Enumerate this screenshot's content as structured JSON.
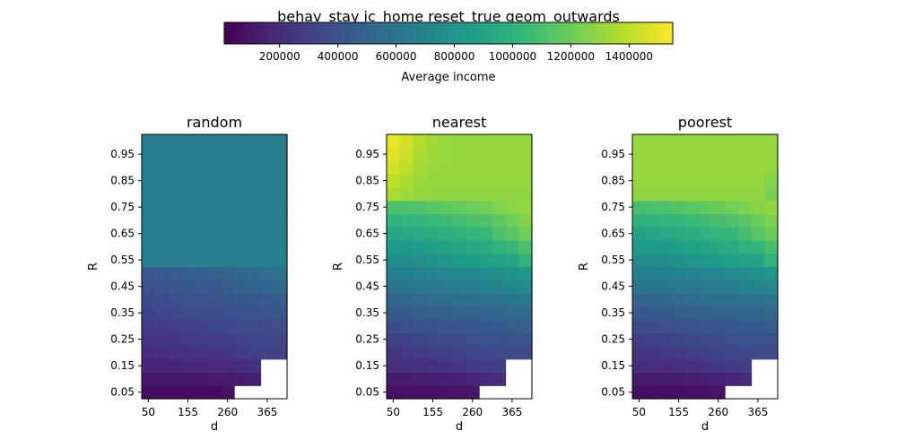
{
  "figure_title": "behav_stay ic_home reset_true geom_outwards",
  "colorbar": {
    "label": "Average income",
    "ticks": [
      200000,
      400000,
      600000,
      800000,
      1000000,
      1200000,
      1400000
    ],
    "range": [
      10000,
      1550000
    ],
    "colormap": "viridis"
  },
  "chart_data": [
    {
      "type": "heatmap",
      "title": "random",
      "xlabel": "d",
      "ylabel": "R",
      "x_ticks": [
        "50",
        "155",
        "260",
        "365"
      ],
      "y_ticks": [
        "0.05",
        "0.15",
        "0.25",
        "0.35",
        "0.45",
        "0.55",
        "0.65",
        "0.75",
        "0.85",
        "0.95"
      ],
      "x_range": [
        50,
        400
      ],
      "y_range": [
        0.05,
        1.0
      ],
      "x_values": [
        50,
        85,
        120,
        155,
        190,
        225,
        260,
        295,
        330,
        365,
        400
      ],
      "y_values": [
        0.05,
        0.1,
        0.15,
        0.2,
        0.25,
        0.3,
        0.35,
        0.4,
        0.45,
        0.5,
        0.55,
        0.6,
        0.65,
        0.7,
        0.75,
        0.8,
        0.85,
        0.9,
        0.95,
        1.0
      ],
      "z": [
        [
          60000,
          60000,
          60000,
          60000,
          60000,
          60000,
          80000,
          null,
          null,
          null,
          null
        ],
        [
          110000,
          110000,
          110000,
          110000,
          110000,
          120000,
          120000,
          130000,
          150000,
          null,
          null
        ],
        [
          170000,
          170000,
          170000,
          180000,
          180000,
          190000,
          190000,
          200000,
          230000,
          null,
          null
        ],
        [
          200000,
          210000,
          220000,
          230000,
          240000,
          250000,
          260000,
          280000,
          300000,
          310000,
          310000
        ],
        [
          240000,
          250000,
          260000,
          270000,
          280000,
          290000,
          300000,
          310000,
          330000,
          340000,
          340000
        ],
        [
          280000,
          290000,
          300000,
          310000,
          320000,
          330000,
          340000,
          350000,
          360000,
          370000,
          380000
        ],
        [
          320000,
          330000,
          340000,
          350000,
          360000,
          370000,
          380000,
          390000,
          400000,
          410000,
          420000
        ],
        [
          360000,
          370000,
          380000,
          390000,
          400000,
          410000,
          420000,
          430000,
          440000,
          450000,
          460000
        ],
        [
          400000,
          410000,
          420000,
          430000,
          440000,
          450000,
          460000,
          480000,
          500000,
          520000,
          540000
        ],
        [
          440000,
          450000,
          460000,
          470000,
          480000,
          490000,
          500000,
          520000,
          540000,
          560000,
          600000
        ],
        [
          660000,
          660000,
          660000,
          660000,
          660000,
          660000,
          660000,
          660000,
          660000,
          660000,
          680000
        ],
        [
          660000,
          660000,
          660000,
          660000,
          660000,
          660000,
          660000,
          660000,
          660000,
          660000,
          680000
        ],
        [
          660000,
          660000,
          660000,
          660000,
          660000,
          660000,
          660000,
          660000,
          660000,
          660000,
          670000
        ],
        [
          660000,
          660000,
          660000,
          660000,
          660000,
          660000,
          660000,
          660000,
          660000,
          660000,
          670000
        ],
        [
          660000,
          660000,
          660000,
          660000,
          660000,
          660000,
          660000,
          660000,
          660000,
          660000,
          670000
        ],
        [
          660000,
          660000,
          660000,
          660000,
          660000,
          660000,
          660000,
          660000,
          660000,
          660000,
          660000
        ],
        [
          660000,
          660000,
          660000,
          660000,
          660000,
          660000,
          660000,
          660000,
          660000,
          660000,
          660000
        ],
        [
          660000,
          660000,
          660000,
          660000,
          660000,
          660000,
          660000,
          660000,
          660000,
          660000,
          660000
        ],
        [
          660000,
          660000,
          660000,
          660000,
          660000,
          660000,
          660000,
          660000,
          660000,
          660000,
          660000
        ],
        [
          660000,
          660000,
          660000,
          660000,
          660000,
          660000,
          660000,
          660000,
          660000,
          660000,
          660000
        ]
      ]
    },
    {
      "type": "heatmap",
      "title": "nearest",
      "xlabel": "d",
      "ylabel": "R",
      "x_ticks": [
        "50",
        "155",
        "260",
        "365"
      ],
      "y_ticks": [
        "0.05",
        "0.15",
        "0.25",
        "0.35",
        "0.45",
        "0.55",
        "0.65",
        "0.75",
        "0.85",
        "0.95"
      ],
      "x_range": [
        50,
        400
      ],
      "y_range": [
        0.05,
        1.0
      ],
      "x_values": [
        50,
        85,
        120,
        155,
        190,
        225,
        260,
        295,
        330,
        365,
        400
      ],
      "y_values": [
        0.05,
        0.1,
        0.15,
        0.2,
        0.25,
        0.3,
        0.35,
        0.4,
        0.45,
        0.5,
        0.55,
        0.6,
        0.65,
        0.7,
        0.75,
        0.8,
        0.85,
        0.9,
        0.95,
        1.0
      ],
      "z": [
        [
          80000,
          80000,
          80000,
          80000,
          90000,
          90000,
          100000,
          null,
          null,
          null,
          null
        ],
        [
          130000,
          130000,
          140000,
          140000,
          150000,
          160000,
          170000,
          180000,
          200000,
          null,
          null
        ],
        [
          210000,
          220000,
          220000,
          230000,
          240000,
          250000,
          270000,
          280000,
          290000,
          null,
          null
        ],
        [
          260000,
          270000,
          280000,
          290000,
          300000,
          310000,
          330000,
          340000,
          350000,
          360000,
          360000
        ],
        [
          310000,
          320000,
          330000,
          340000,
          350000,
          360000,
          380000,
          390000,
          400000,
          410000,
          410000
        ],
        [
          370000,
          380000,
          390000,
          400000,
          410000,
          420000,
          430000,
          440000,
          450000,
          460000,
          470000
        ],
        [
          440000,
          450000,
          460000,
          470000,
          480000,
          490000,
          500000,
          510000,
          520000,
          530000,
          540000
        ],
        [
          520000,
          530000,
          540000,
          550000,
          560000,
          570000,
          580000,
          590000,
          600000,
          610000,
          620000
        ],
        [
          600000,
          610000,
          620000,
          630000,
          640000,
          650000,
          660000,
          680000,
          700000,
          720000,
          740000
        ],
        [
          680000,
          690000,
          700000,
          710000,
          720000,
          730000,
          740000,
          760000,
          780000,
          800000,
          820000
        ],
        [
          760000,
          770000,
          780000,
          800000,
          820000,
          840000,
          860000,
          880000,
          900000,
          920000,
          1000000
        ],
        [
          840000,
          850000,
          860000,
          880000,
          900000,
          920000,
          940000,
          960000,
          1000000,
          1040000,
          1100000
        ],
        [
          920000,
          930000,
          940000,
          960000,
          980000,
          1000000,
          1020000,
          1040000,
          1100000,
          1150000,
          1200000
        ],
        [
          1000000,
          1010000,
          1020000,
          1040000,
          1060000,
          1080000,
          1100000,
          1120000,
          1150000,
          1200000,
          1250000
        ],
        [
          1100000,
          1110000,
          1120000,
          1140000,
          1160000,
          1180000,
          1200000,
          1220000,
          1250000,
          1280000,
          1300000
        ],
        [
          1350000,
          1320000,
          1300000,
          1290000,
          1290000,
          1290000,
          1290000,
          1290000,
          1290000,
          1290000,
          1290000
        ],
        [
          1400000,
          1360000,
          1320000,
          1300000,
          1300000,
          1300000,
          1300000,
          1300000,
          1300000,
          1300000,
          1300000
        ],
        [
          1450000,
          1400000,
          1340000,
          1310000,
          1300000,
          1300000,
          1300000,
          1300000,
          1300000,
          1300000,
          1300000
        ],
        [
          1480000,
          1430000,
          1360000,
          1320000,
          1310000,
          1300000,
          1300000,
          1300000,
          1300000,
          1300000,
          1300000
        ],
        [
          1500000,
          1450000,
          1380000,
          1330000,
          1310000,
          1300000,
          1300000,
          1300000,
          1300000,
          1300000,
          1300000
        ]
      ]
    },
    {
      "type": "heatmap",
      "title": "poorest",
      "xlabel": "d",
      "ylabel": "R",
      "x_ticks": [
        "50",
        "155",
        "260",
        "365"
      ],
      "y_ticks": [
        "0.05",
        "0.15",
        "0.25",
        "0.35",
        "0.45",
        "0.55",
        "0.65",
        "0.75",
        "0.85",
        "0.95"
      ],
      "x_range": [
        50,
        400
      ],
      "y_range": [
        0.05,
        1.0
      ],
      "x_values": [
        50,
        85,
        120,
        155,
        190,
        225,
        260,
        295,
        330,
        365,
        400
      ],
      "y_values": [
        0.05,
        0.1,
        0.15,
        0.2,
        0.25,
        0.3,
        0.35,
        0.4,
        0.45,
        0.5,
        0.55,
        0.6,
        0.65,
        0.7,
        0.75,
        0.8,
        0.85,
        0.9,
        0.95,
        1.0
      ],
      "z": [
        [
          70000,
          70000,
          70000,
          70000,
          80000,
          80000,
          90000,
          null,
          null,
          null,
          null
        ],
        [
          120000,
          120000,
          130000,
          130000,
          140000,
          150000,
          160000,
          170000,
          190000,
          null,
          null
        ],
        [
          200000,
          210000,
          210000,
          220000,
          230000,
          240000,
          260000,
          270000,
          280000,
          null,
          null
        ],
        [
          250000,
          260000,
          270000,
          280000,
          290000,
          300000,
          320000,
          330000,
          340000,
          350000,
          350000
        ],
        [
          300000,
          310000,
          320000,
          330000,
          340000,
          350000,
          370000,
          380000,
          390000,
          400000,
          400000
        ],
        [
          360000,
          370000,
          380000,
          390000,
          400000,
          410000,
          420000,
          430000,
          440000,
          450000,
          460000
        ],
        [
          430000,
          440000,
          450000,
          460000,
          470000,
          480000,
          490000,
          500000,
          510000,
          520000,
          530000
        ],
        [
          510000,
          520000,
          530000,
          540000,
          550000,
          560000,
          570000,
          580000,
          590000,
          600000,
          610000
        ],
        [
          590000,
          600000,
          610000,
          620000,
          630000,
          640000,
          650000,
          670000,
          690000,
          710000,
          730000
        ],
        [
          670000,
          680000,
          690000,
          700000,
          710000,
          720000,
          730000,
          750000,
          770000,
          790000,
          810000
        ],
        [
          750000,
          760000,
          770000,
          790000,
          810000,
          830000,
          850000,
          870000,
          890000,
          910000,
          990000
        ],
        [
          830000,
          840000,
          850000,
          870000,
          890000,
          910000,
          930000,
          950000,
          990000,
          1030000,
          1090000
        ],
        [
          910000,
          920000,
          930000,
          950000,
          970000,
          990000,
          1010000,
          1030000,
          1090000,
          1140000,
          1190000
        ],
        [
          990000,
          1000000,
          1010000,
          1030000,
          1050000,
          1070000,
          1090000,
          1110000,
          1140000,
          1190000,
          1240000
        ],
        [
          1090000,
          1100000,
          1110000,
          1130000,
          1150000,
          1170000,
          1190000,
          1210000,
          1240000,
          1270000,
          1290000
        ],
        [
          1290000,
          1290000,
          1290000,
          1290000,
          1290000,
          1290000,
          1290000,
          1290000,
          1290000,
          1290000,
          1230000
        ],
        [
          1300000,
          1300000,
          1300000,
          1300000,
          1300000,
          1300000,
          1300000,
          1300000,
          1300000,
          1300000,
          1260000
        ],
        [
          1300000,
          1300000,
          1300000,
          1300000,
          1300000,
          1300000,
          1300000,
          1300000,
          1300000,
          1300000,
          1300000
        ],
        [
          1300000,
          1300000,
          1300000,
          1300000,
          1300000,
          1300000,
          1300000,
          1300000,
          1300000,
          1300000,
          1300000
        ],
        [
          1300000,
          1300000,
          1300000,
          1300000,
          1300000,
          1300000,
          1300000,
          1300000,
          1300000,
          1300000,
          1300000
        ]
      ]
    }
  ]
}
